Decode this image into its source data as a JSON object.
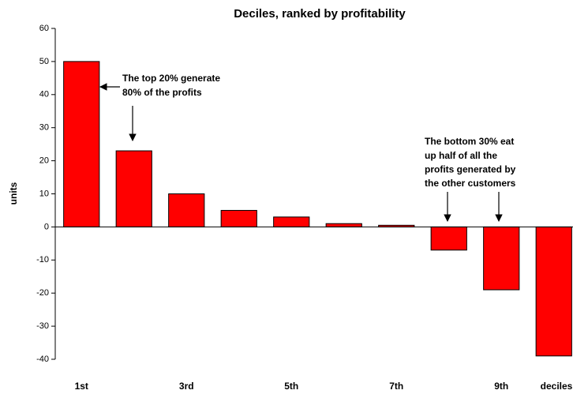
{
  "chart_data": {
    "type": "bar",
    "title": "Deciles, ranked by profitability",
    "categories": [
      "1st",
      null,
      "3rd",
      null,
      "5th",
      null,
      "7th",
      null,
      "9th",
      null
    ],
    "values": [
      50,
      23,
      10,
      5,
      3,
      1,
      0.5,
      -7,
      -19,
      -39
    ],
    "color": "#ff0000",
    "ylabel": "units",
    "xlabel": "deciles",
    "ylim": [
      -40,
      60
    ],
    "yticks": [
      -40,
      -30,
      -20,
      -10,
      0,
      10,
      20,
      30,
      40,
      50,
      60
    ],
    "annotations": [
      {
        "lines": [
          "The top 20% generate",
          "80% of the profits"
        ]
      },
      {
        "lines": [
          "The bottom 30% eat",
          "up half of all the",
          "profits generated by",
          "the other customers"
        ]
      }
    ]
  }
}
